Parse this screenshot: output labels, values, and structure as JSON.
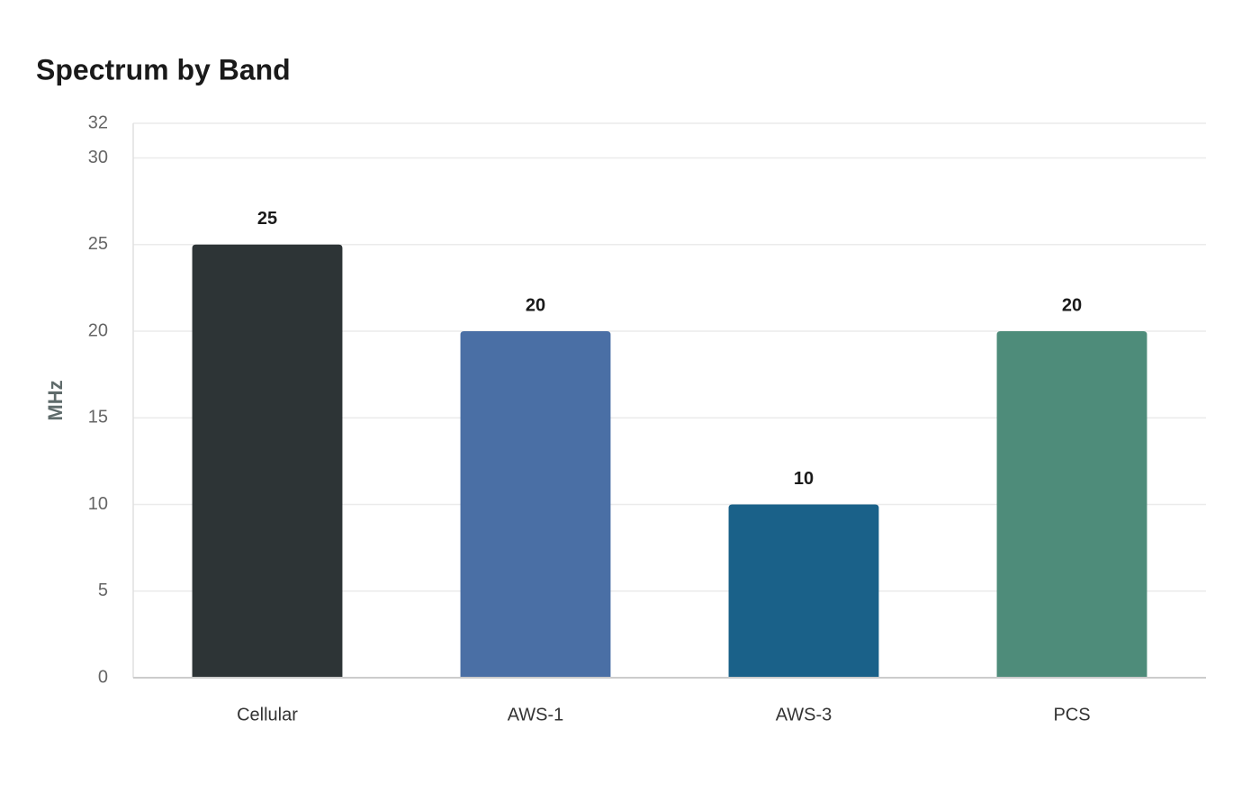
{
  "chart_data": {
    "type": "bar",
    "title": "Spectrum by Band",
    "y_label": "MHz",
    "categories": [
      "Cellular",
      "AWS-1",
      "AWS-3",
      "PCS"
    ],
    "values": [
      25,
      20,
      10,
      20
    ],
    "colors": [
      "#2d3436",
      "#4a6fa5",
      "#1a6189",
      "#4e8c7a"
    ],
    "ylim": [
      0,
      32
    ],
    "yticks": [
      0,
      5,
      10,
      15,
      20,
      25,
      30,
      32
    ],
    "grid": true
  }
}
